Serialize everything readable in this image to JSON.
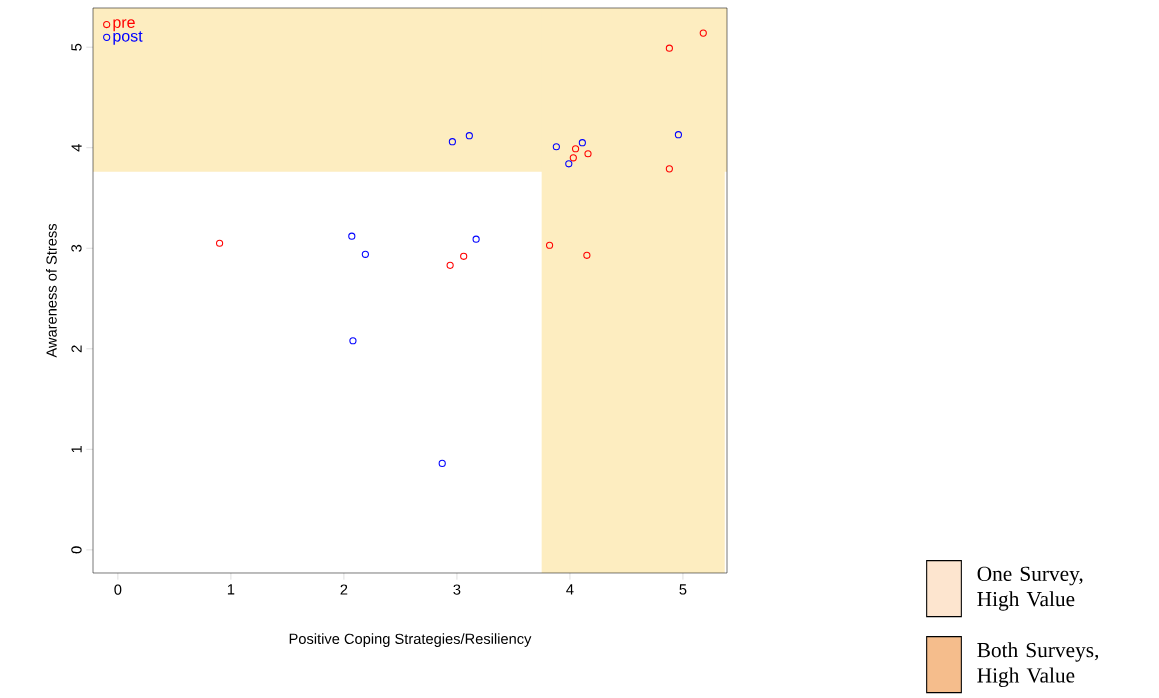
{
  "chart_data": {
    "type": "scatter",
    "xlabel": "Positive Coping Strategies/Resiliency",
    "ylabel": "Awareness of Stress",
    "xlim": [
      -0.22,
      5.39
    ],
    "ylim": [
      -0.23,
      5.39
    ],
    "xticks": [
      0,
      1,
      2,
      3,
      4,
      5
    ],
    "yticks": [
      0,
      1,
      2,
      3,
      4,
      5
    ],
    "marker": "circle",
    "legend": "top left",
    "grid": false,
    "series": [
      {
        "name": "pre",
        "color": "#ff0000",
        "x": [
          0.9,
          2.94,
          3.06,
          3.82,
          4.15,
          4.88,
          5.18,
          4.05,
          4.03,
          4.16,
          4.88
        ],
        "values": [
          3.05,
          2.83,
          2.92,
          3.03,
          2.93,
          4.99,
          5.14,
          3.99,
          3.9,
          3.94,
          3.79
        ]
      },
      {
        "name": "post",
        "color": "#0000ff",
        "x": [
          2.07,
          2.19,
          3.17,
          2.08,
          2.87,
          2.96,
          3.11,
          3.88,
          4.11,
          3.99,
          4.96
        ],
        "values": [
          3.12,
          2.94,
          3.09,
          2.08,
          0.86,
          4.06,
          4.12,
          4.01,
          4.05,
          3.84,
          4.13
        ]
      }
    ],
    "bands": [
      {
        "axis": "y",
        "from": 3.76,
        "to": 5.39,
        "color": "#fdedc0"
      },
      {
        "axis": "x",
        "from": 3.75,
        "to": 5.37,
        "color": "#fdedc0"
      }
    ],
    "annotations": [
      "One Survey, High Value",
      "Both Surveys, High Value"
    ]
  }
}
